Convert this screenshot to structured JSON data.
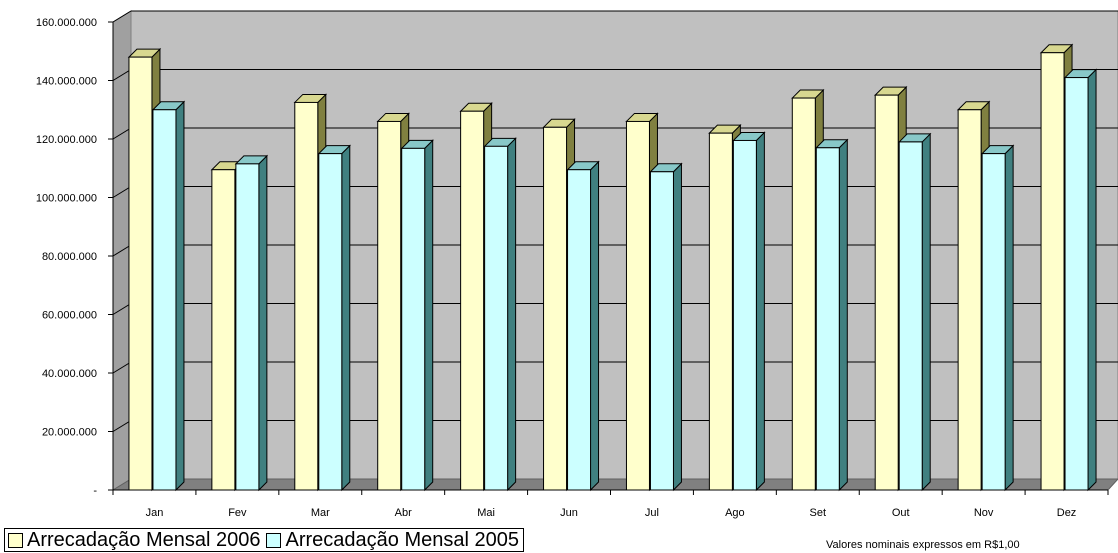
{
  "chart_data": {
    "type": "bar",
    "categories": [
      "Jan",
      "Fev",
      "Mar",
      "Abr",
      "Mai",
      "Jun",
      "Jul",
      "Ago",
      "Set",
      "Out",
      "Nov",
      "Dez"
    ],
    "series": [
      {
        "name": "Arrecadação Mensal 2006",
        "color": "#FFFFCC",
        "values": [
          148000000,
          109500000,
          132500000,
          126000000,
          129500000,
          124000000,
          126000000,
          122000000,
          134000000,
          135000000,
          130000000,
          149500000
        ]
      },
      {
        "name": "Arrecadação Mensal 2005",
        "color": "#CCFFFF",
        "values": [
          130000000,
          111500000,
          115000000,
          116800000,
          117500000,
          109500000,
          108800000,
          119500000,
          117000000,
          119000000,
          115000000,
          141000000
        ]
      }
    ],
    "y_ticks": [
      "-",
      "20.000.000",
      "40.000.000",
      "60.000.000",
      "80.000.000",
      "100.000.000",
      "120.000.000",
      "140.000.000",
      "160.000.000"
    ],
    "ylim": [
      0,
      160000000
    ],
    "grid": true,
    "legend_position": "bottom-left",
    "note": "Valores nominais expressos em R$1,00",
    "style": "3d-clustered-column"
  }
}
